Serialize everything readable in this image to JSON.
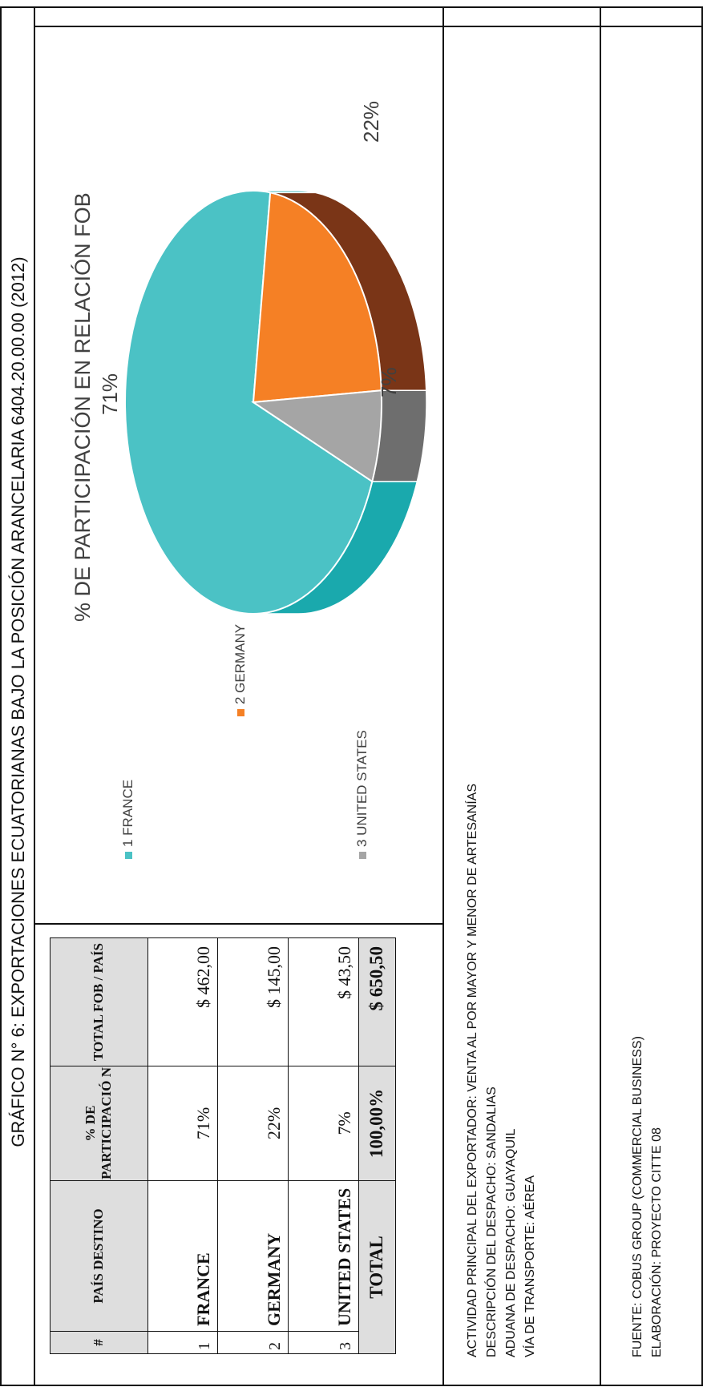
{
  "title": "GRÁFICO N° 6: EXPORTACIONES ECUATORIANAS BAJO LA POSICIÓN ARANCELARIA 6404.20.00.00  (2012)",
  "table": {
    "headers": [
      "#",
      "PAÍS DESTINO",
      "% DE PARTICIPACIÓ N",
      "TOTAL FOB / PAÍS"
    ],
    "rows": [
      {
        "n": "1",
        "country": "FRANCE",
        "pct": "71%",
        "fob": "$ 462,00"
      },
      {
        "n": "2",
        "country": "GERMANY",
        "pct": "22%",
        "fob": "$ 145,00"
      },
      {
        "n": "3",
        "country": "UNITED STATES",
        "pct": "7%",
        "fob": "$ 43,50"
      }
    ],
    "total": {
      "label": "TOTAL",
      "pct": "100,00%",
      "fob": "$ 650,50"
    }
  },
  "chart_data": {
    "type": "pie",
    "title": "% DE PARTICIPACIÓN EN RELACIÓN FOB",
    "categories": [
      "1 FRANCE",
      "2 GERMANY",
      "3 UNITED STATES"
    ],
    "values": [
      71,
      22,
      7
    ],
    "labels": [
      "71%",
      "22%",
      "7%"
    ],
    "colors": [
      "#4bc2c5",
      "#f58025",
      "#a5a5a5"
    ],
    "side_colors": [
      "#1aa9ad",
      "#7a3517",
      "#6e6e6e"
    ],
    "legend": "left",
    "style": "3d"
  },
  "info": [
    "ACTIVIDAD PRINCIPAL DEL EXPORTADOR: VENTA AL POR MAYOR Y MENOR DE ARTESANÍAS",
    "DESCRIPCIÓN DEL DESPACHO: SANDALIAS",
    "ADUANA DE DESPACHO: GUAYAQUIL",
    "VÍA DE TRANSPORTE: AÉREA"
  ],
  "footer": [
    "FUENTE: COBUS GROUP (COMMERCIAL BUSINESS)",
    "ELABORACIÓN: PROYECTO CITTE 08"
  ]
}
